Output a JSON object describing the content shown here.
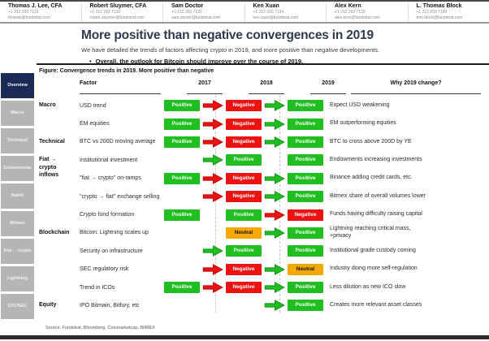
{
  "header": {
    "analysts": [
      {
        "name": "Thomas J. Lee, CFA",
        "phone": "+1 212 293 7131",
        "email": "thomas@fundstrat.com"
      },
      {
        "name": "Robert Sluymer, CFA",
        "phone": "+1 212 293 7135",
        "email": "robert.sluymer@fundstrat.com"
      },
      {
        "name": "Sam Doctor",
        "phone": "+1 212 293 7132",
        "email": "sam.doctor@fundstrat.com"
      },
      {
        "name": "Ken Xuan",
        "phone": "+1 212 293 7134",
        "email": "ken.xuan@fundstrat.com"
      },
      {
        "name": "Alex Kern",
        "phone": "+1 212 293 7133",
        "email": "alex.kern@fundstrat.com"
      },
      {
        "name": "L. Thomas Block",
        "phone": "+1 212 293 7130",
        "email": "tom.block@fundstrat.com"
      }
    ]
  },
  "title_block": {
    "title": "More positive than negative convergences in 2019",
    "subtitle": "We have detailed the trends of factors affecting crypto in 2019, and more positive than negative developments.",
    "bullet": "Overall, the outlook for Bitcoin should improve over the course of 2019."
  },
  "figure_caption": "Figure: Convergence trends in 2019.  More positive than negative",
  "sidebar": {
    "items": [
      {
        "label": "Overview",
        "active": true
      },
      {
        "label": "Macro",
        "active": false
      },
      {
        "label": "Technical",
        "active": false
      },
      {
        "label": "Endowments",
        "active": false
      },
      {
        "label": "Bakkt",
        "active": false
      },
      {
        "label": "Bitmex",
        "active": false
      },
      {
        "label": "Fiat→ crypto",
        "active": false
      },
      {
        "label": "Lightning",
        "active": false
      },
      {
        "label": "ETF/SEC",
        "active": false
      }
    ]
  },
  "table": {
    "columns": [
      "Factor",
      "2017",
      "2018",
      "2019",
      "Why 2019 change?"
    ],
    "rows": [
      {
        "group": "Macro",
        "factor": "USD trend",
        "y2017": "Positive",
        "arrow2018": "red",
        "y2018": "Negative",
        "arrow2019": "green",
        "y2019": "Positive",
        "why": "Expect USD weakening"
      },
      {
        "group": "",
        "factor": "EM equities",
        "y2017": "Positive",
        "arrow2018": "red",
        "y2018": "Negative",
        "arrow2019": "green",
        "y2019": "Positive",
        "why": "EM outperforming equities"
      },
      {
        "group": "Technical",
        "factor": "BTC vs 200D moving average",
        "y2017": "Positive",
        "arrow2018": "red",
        "y2018": "Negative",
        "arrow2019": "green",
        "y2019": "Positive",
        "why": "BTC to cross above 200D by YE"
      },
      {
        "group": "Fiat →\ncrypto\ninflows",
        "factor": "Institutional investment",
        "y2017": null,
        "arrow2018": "green",
        "y2018": "Positive",
        "arrow2019": null,
        "y2019": "Positive",
        "why": "Endowments increasing investments"
      },
      {
        "group": "",
        "factor": "\"fiat → crypto\" on-ramps",
        "y2017": "Positive",
        "arrow2018": "red",
        "y2018": "Negative",
        "arrow2019": "green",
        "y2019": "Positive",
        "why": "Binance adding credit cards, etc."
      },
      {
        "group": "",
        "factor": "\"crypto → fiat\" exchange selling",
        "y2017": null,
        "arrow2018": "red",
        "y2018": "Negative",
        "arrow2019": "green",
        "y2019": "Positive",
        "why": "Bitmex share of overall volumes lower"
      },
      {
        "group": "",
        "factor": "Crypto fund formation",
        "y2017": "Positive",
        "arrow2018": null,
        "y2018": "Positive",
        "arrow2019": "red",
        "y2019": "Negative",
        "why": "Funds having difficulty raising capital"
      },
      {
        "group": "Blockchain",
        "factor": "Bitcoin: Lightning scales up",
        "y2017": null,
        "arrow2018": null,
        "y2018": "Neutral",
        "arrow2019": "green",
        "y2019": "Positive",
        "why": "Lightning reaching critical mass,\n+privacy"
      },
      {
        "group": "",
        "factor": "Security on infrastructure",
        "y2017": null,
        "arrow2018": "green",
        "y2018": "Positive",
        "arrow2019": null,
        "y2019": "Positive",
        "why": "Institutional grade custody coming"
      },
      {
        "group": "",
        "factor": "SEC regulatory risk",
        "y2017": null,
        "arrow2018": "red",
        "y2018": "Negative",
        "arrow2019": "green",
        "y2019": "Neutral",
        "why": "Industry doing more self-regulation"
      },
      {
        "group": "",
        "factor": "Trend in ICOs",
        "y2017": "Positive",
        "arrow2018": "red",
        "y2018": "Negative",
        "arrow2019": "green",
        "y2019": "Positive",
        "why": "Less dilution as new ICO slow"
      },
      {
        "group": "Equity",
        "factor": "IPO Bitmain, Bitfury, etc",
        "y2017": null,
        "arrow2018": null,
        "y2018": null,
        "arrow2019": "green",
        "y2019": "Positive",
        "why": "Creates more relevant asset classes"
      }
    ]
  },
  "source": "Source: Fundstrat, Bloomberg, Coinmarketcap, BitMEX",
  "colors": {
    "positive": "#1fbf1f",
    "negative": "#ee1111",
    "neutral": "#f5a800",
    "sidebar_active": "#1b2a55",
    "sidebar_inactive": "#b5b5b5"
  }
}
